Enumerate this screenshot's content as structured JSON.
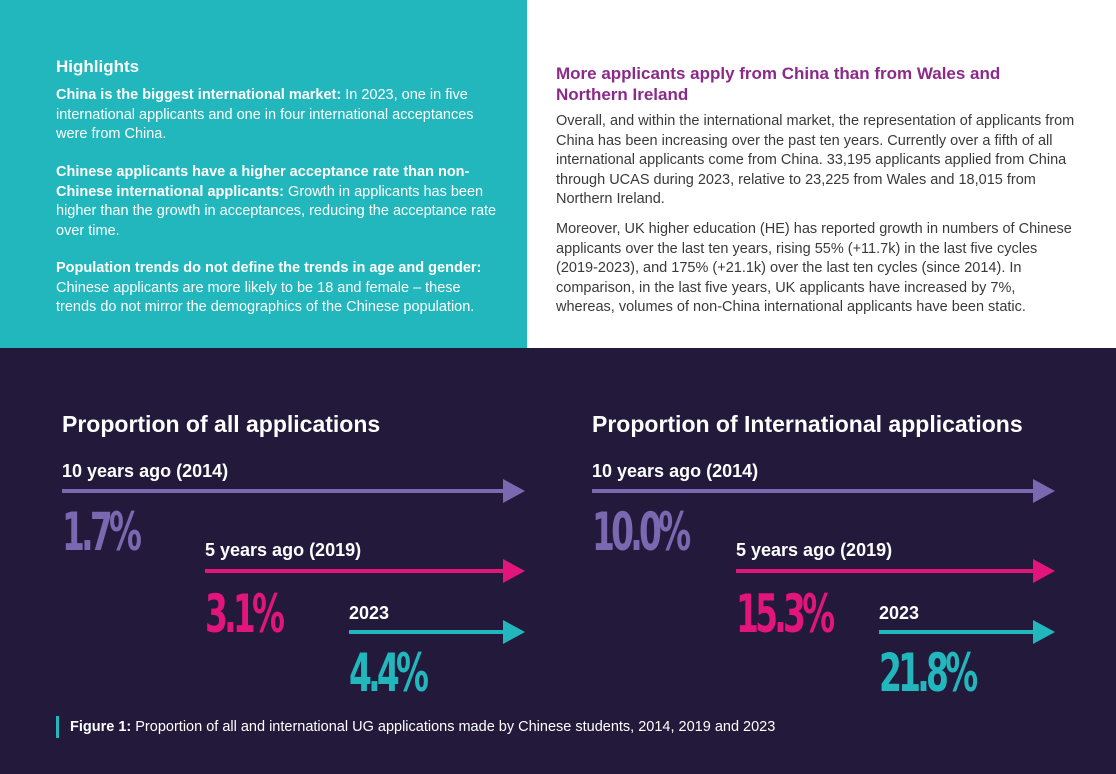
{
  "highlights": {
    "title": "Highlights",
    "items": [
      {
        "bold": "China is the biggest international market:",
        "text": " In 2023, one in five international applicants and one in four international acceptances were from China."
      },
      {
        "bold": "Chinese applicants have a higher acceptance rate than non-Chinese international applicants:",
        "text": " Growth in applicants has been higher than the growth in acceptances, reducing the acceptance rate over time."
      },
      {
        "bold": "Population trends do not define the trends in age and gender:",
        "text": " Chinese applicants are more likely to be 18 and female – these trends do not mirror the demographics of the Chinese population."
      }
    ]
  },
  "article": {
    "heading": "More applicants apply from China than from Wales and Northern Ireland",
    "paragraphs": [
      "Overall, and within the international market, the representation of applicants from China has been increasing over the past ten years. Currently over a fifth of all international applicants come from China. 33,195 applicants applied from China through UCAS during 2023, relative to 23,225 from Wales and 18,015 from Northern Ireland.",
      "Moreover, UK higher education (HE) has reported growth in numbers of Chinese applicants over the last ten years, rising 55% (+11.7k) in the last five cycles (2019-2023), and 175% (+21.1k) over the last ten cycles (since 2014). In comparison, in the last five years, UK applicants have increased by 7%, whereas, volumes of non-China international applicants have been static."
    ]
  },
  "panels": [
    {
      "title": "Proportion of all applications",
      "rows": [
        {
          "label": "10 years ago (2014)",
          "value": "1.7%"
        },
        {
          "label": "5 years ago (2019)",
          "value": "3.1%"
        },
        {
          "label": "2023",
          "value": "4.4%"
        }
      ]
    },
    {
      "title": "Proportion of International applications",
      "rows": [
        {
          "label": "10 years ago (2014)",
          "value": "10.0%"
        },
        {
          "label": "5 years ago (2019)",
          "value": "15.3%"
        },
        {
          "label": "2023",
          "value": "21.8%"
        }
      ]
    }
  ],
  "caption": {
    "bold": "Figure 1:",
    "text": " Proportion of all and international UG applications made by Chinese students, 2014, 2019 and 2023"
  },
  "colors": {
    "teal": "#21b7bd",
    "navy": "#231a3b",
    "purple": "#7a68b0",
    "magenta": "#e2157d",
    "heading_purple": "#8b2a8a"
  }
}
